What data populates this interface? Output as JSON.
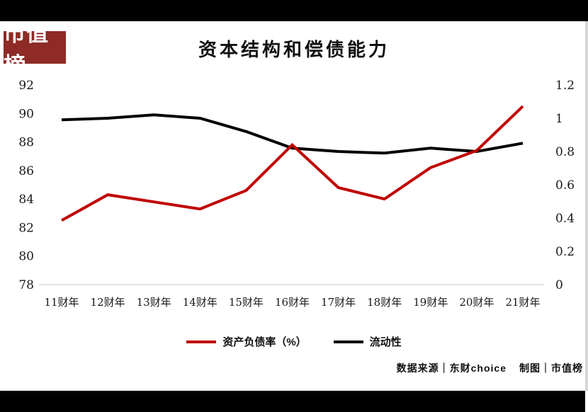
{
  "page": {
    "logo": "市值榜",
    "credits": {
      "source": "数据来源｜东财choice",
      "maker": "制图｜市值榜"
    },
    "colors": {
      "accent_red": "#c00000",
      "logo_bg": "#8e2b26",
      "frame_black": "#000000",
      "scrollbar_gray": "#d8d8d8"
    }
  },
  "chart_data": {
    "type": "line",
    "title": "资本结构和偿债能力",
    "categories": [
      "11财年",
      "12财年",
      "13财年",
      "14财年",
      "15财年",
      "16财年",
      "17财年",
      "18财年",
      "19财年",
      "20财年",
      "21财年"
    ],
    "series": [
      {
        "name": "资产负债率（%）",
        "axis": "left",
        "color": "#c00000",
        "values": [
          82.5,
          84.3,
          83.8,
          83.3,
          84.6,
          87.8,
          84.8,
          84.0,
          86.2,
          87.4,
          90.5
        ]
      },
      {
        "name": "流动性",
        "axis": "right",
        "color": "#000000",
        "values": [
          0.99,
          1.0,
          1.02,
          1.0,
          0.92,
          0.82,
          0.8,
          0.79,
          0.82,
          0.8,
          0.85
        ]
      }
    ],
    "left_axis": {
      "min": 78,
      "max": 92,
      "ticks": [
        "92",
        "90",
        "88",
        "86",
        "84",
        "82",
        "80",
        "78"
      ]
    },
    "right_axis": {
      "min": 0,
      "max": 1.2,
      "ticks": [
        "1.2",
        "1",
        "0.8",
        "0.6",
        "0.4",
        "0.2",
        "0"
      ]
    },
    "legend_position": "bottom",
    "grid": false,
    "axis_line_color": "#c9c9c9"
  }
}
